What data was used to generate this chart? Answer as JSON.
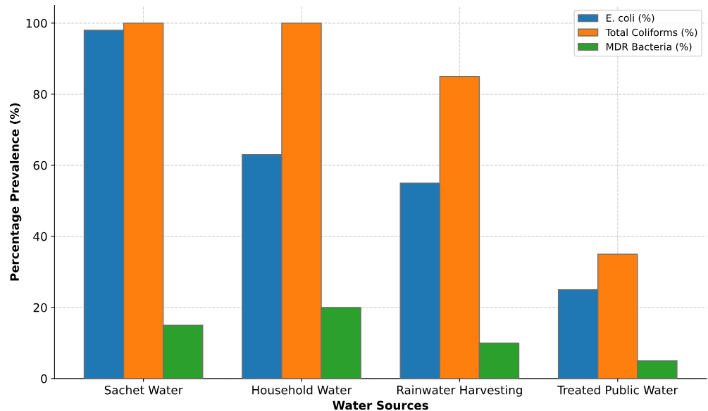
{
  "chart_data": {
    "type": "bar",
    "xlabel": "Water Sources",
    "ylabel": "Percentage Prevalence (%)",
    "categories": [
      "Sachet Water",
      "Household Water",
      "Rainwater Harvesting",
      "Treated Public Water"
    ],
    "series": [
      {
        "name": "E. coli (%)",
        "color": "#1f77b4",
        "values": [
          98,
          63,
          55,
          25
        ]
      },
      {
        "name": "Total Coliforms (%)",
        "color": "#ff7f0e",
        "values": [
          100,
          100,
          85,
          35
        ]
      },
      {
        "name": "MDR Bacteria (%)",
        "color": "#2ca02c",
        "values": [
          15,
          20,
          10,
          5
        ]
      }
    ],
    "ylim": [
      0,
      105
    ],
    "yticks": [
      0,
      20,
      40,
      60,
      80,
      100
    ],
    "grid": true,
    "legend": "top right"
  }
}
